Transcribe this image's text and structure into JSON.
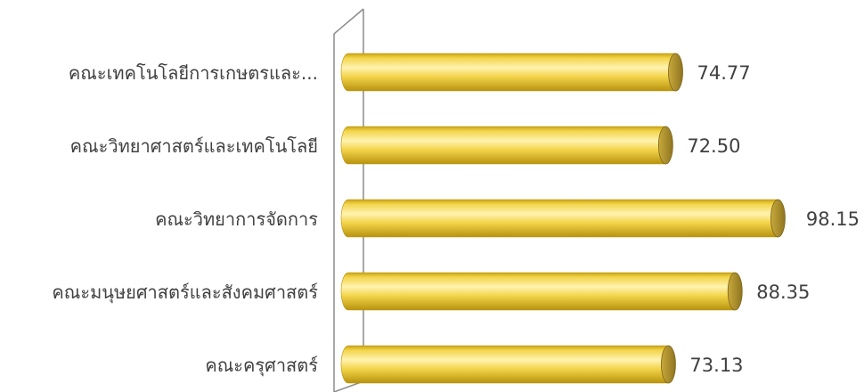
{
  "chart_data": {
    "type": "bar",
    "orientation": "horizontal",
    "style": "3d-cylinder",
    "title": "",
    "xlabel": "",
    "ylabel": "",
    "categories": [
      "คณะเทคโนโลยีการเกษตรและ...",
      "คณะวิทยาศาสตร์และเทคโนโลยี",
      "คณะวิทยาการจัดการ",
      "คณะมนุษยศาสตร์และสังคมศาสตร์",
      "คณะครุศาสตร์"
    ],
    "values": [
      74.77,
      72.5,
      98.15,
      88.35,
      73.13
    ],
    "value_labels": [
      "74.77",
      "72.50",
      "98.15",
      "88.35",
      "73.13"
    ],
    "xlim": [
      0,
      120
    ],
    "grid": false,
    "legend": "none",
    "colors": {
      "bar_light": "#fff3b0",
      "bar_mid": "#f3d44a",
      "bar_dark": "#c9a312",
      "bar_cap": "#a88a2a",
      "axis": "#8c8c8c",
      "text": "#404040"
    }
  }
}
